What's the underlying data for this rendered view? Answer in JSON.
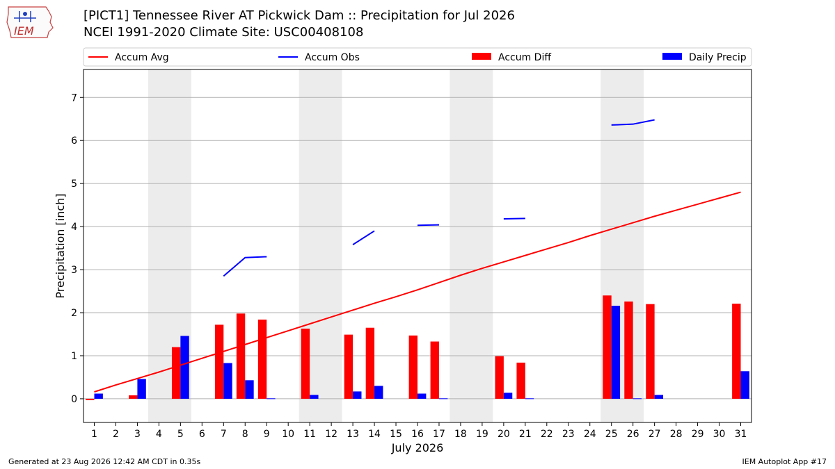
{
  "header": {
    "title": "[PICT1] Tennessee River  AT Pickwick Dam :: Precipitation for Jul 2026",
    "subtitle": "NCEI 1991-2020 Climate Site: USC00408108",
    "logo_text": "IEM"
  },
  "footer": {
    "generated": "Generated at 23 Aug 2026 12:42 AM CDT in 0.35s",
    "app": "IEM Autoplot App #17"
  },
  "colors": {
    "avg": "#ff0000",
    "obs": "#0000ff",
    "diff": "#ff0000",
    "daily": "#0000ff",
    "weekend": "#ececec",
    "grid": "#b0b0b0"
  },
  "chart_data": {
    "type": "bar",
    "xlabel": "July 2026",
    "ylabel": "Precipitation [inch]",
    "xlim": [
      0.5,
      31.5
    ],
    "ylim": [
      -0.55,
      7.65
    ],
    "yticks": [
      0,
      1,
      2,
      3,
      4,
      5,
      6,
      7
    ],
    "grid": "horizontal",
    "legend_placement": "top",
    "days": [
      1,
      2,
      3,
      4,
      5,
      6,
      7,
      8,
      9,
      10,
      11,
      12,
      13,
      14,
      15,
      16,
      17,
      18,
      19,
      20,
      21,
      22,
      23,
      24,
      25,
      26,
      27,
      28,
      29,
      30,
      31
    ],
    "weekends": [
      [
        4,
        5
      ],
      [
        11,
        12
      ],
      [
        18,
        19
      ],
      [
        25,
        26
      ]
    ],
    "series": [
      {
        "name": "Accum Avg",
        "kind": "line",
        "values": [
          0.16,
          0.32,
          0.47,
          0.62,
          0.78,
          0.94,
          1.1,
          1.26,
          1.42,
          1.58,
          1.74,
          1.9,
          2.06,
          2.22,
          2.37,
          2.53,
          2.7,
          2.87,
          3.03,
          3.18,
          3.33,
          3.48,
          3.63,
          3.79,
          3.94,
          4.09,
          4.24,
          4.38,
          4.52,
          4.66,
          4.8
        ]
      },
      {
        "name": "Accum Obs",
        "kind": "line",
        "values": [
          null,
          null,
          null,
          null,
          null,
          null,
          2.85,
          3.28,
          3.3,
          null,
          null,
          null,
          3.58,
          3.9,
          null,
          4.03,
          4.04,
          null,
          null,
          4.18,
          4.19,
          null,
          null,
          null,
          6.36,
          6.38,
          6.48,
          null,
          null,
          null,
          null
        ]
      },
      {
        "name": "Accum Diff",
        "kind": "bar",
        "values": [
          -0.03,
          0.0,
          0.08,
          0.0,
          1.2,
          0.0,
          1.72,
          1.98,
          1.84,
          0.0,
          1.63,
          0.0,
          1.49,
          1.65,
          0.0,
          1.47,
          1.33,
          0.0,
          0.0,
          0.99,
          0.84,
          0.0,
          0.0,
          0.0,
          2.4,
          2.26,
          2.2,
          0.0,
          0.0,
          0.0,
          2.21
        ]
      },
      {
        "name": "Daily Precip",
        "kind": "bar",
        "values": [
          0.12,
          0.0,
          0.46,
          0.0,
          1.46,
          0.0,
          0.83,
          0.43,
          0.01,
          0.0,
          0.09,
          0.0,
          0.17,
          0.3,
          0.0,
          0.12,
          0.01,
          0.0,
          0.0,
          0.14,
          0.01,
          0.0,
          0.0,
          0.0,
          2.16,
          0.01,
          0.09,
          0.0,
          0.0,
          0.0,
          0.64
        ]
      }
    ]
  }
}
